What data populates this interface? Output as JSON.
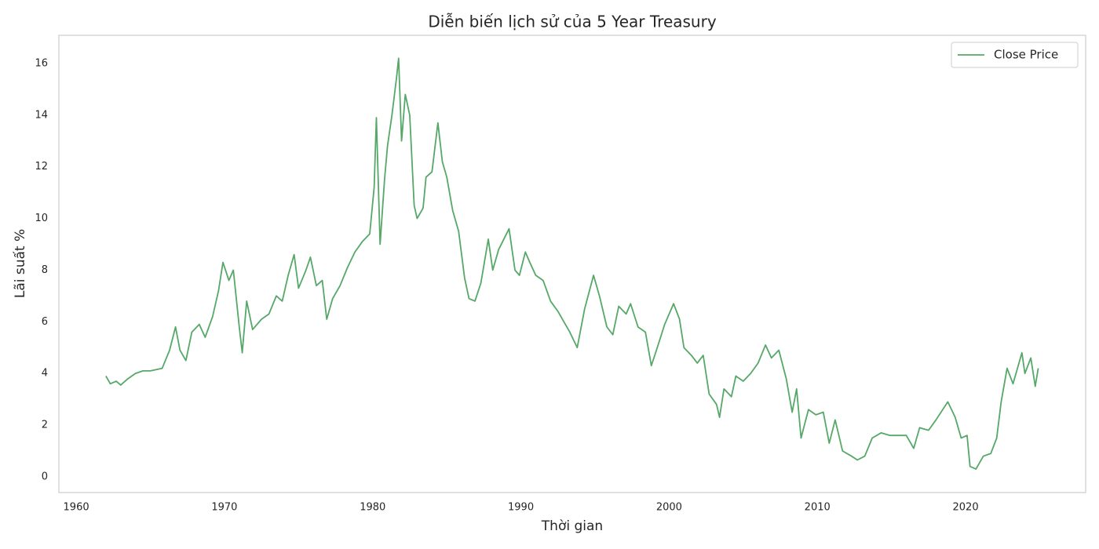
{
  "chart_data": {
    "type": "line",
    "title": "Diễn biến lịch sử của 5 Year Treasury",
    "xlabel": "Thời gian",
    "ylabel": "Lãi suất %",
    "x": [
      1962.0,
      1962.3,
      1962.7,
      1963.0,
      1963.5,
      1964.0,
      1964.5,
      1965.0,
      1965.8,
      1966.3,
      1966.7,
      1967.0,
      1967.4,
      1967.8,
      1968.3,
      1968.7,
      1969.2,
      1969.6,
      1969.9,
      1970.3,
      1970.6,
      1971.0,
      1971.2,
      1971.5,
      1971.9,
      1972.5,
      1973.0,
      1973.5,
      1973.9,
      1974.3,
      1974.7,
      1975.0,
      1975.5,
      1975.8,
      1976.2,
      1976.6,
      1976.9,
      1977.3,
      1977.8,
      1978.3,
      1978.8,
      1979.3,
      1979.8,
      1980.1,
      1980.25,
      1980.5,
      1980.8,
      1981.0,
      1981.3,
      1981.6,
      1981.75,
      1981.95,
      1982.2,
      1982.5,
      1982.8,
      1983.0,
      1983.4,
      1983.6,
      1984.0,
      1984.4,
      1984.7,
      1985.0,
      1985.4,
      1985.8,
      1986.2,
      1986.5,
      1986.9,
      1987.3,
      1987.8,
      1988.1,
      1988.5,
      1989.2,
      1989.6,
      1989.9,
      1990.3,
      1990.6,
      1991.0,
      1991.5,
      1992.0,
      1992.5,
      1992.9,
      1993.3,
      1993.8,
      1994.3,
      1994.9,
      1995.3,
      1995.8,
      1996.2,
      1996.6,
      1997.1,
      1997.4,
      1997.9,
      1998.4,
      1998.8,
      1999.2,
      1999.7,
      2000.3,
      2000.7,
      2001.0,
      2001.5,
      2001.9,
      2002.3,
      2002.7,
      2003.2,
      2003.4,
      2003.7,
      2004.2,
      2004.5,
      2005.0,
      2005.5,
      2006.0,
      2006.5,
      2006.9,
      2007.4,
      2007.9,
      2008.3,
      2008.6,
      2008.9,
      2009.4,
      2009.9,
      2010.4,
      2010.8,
      2011.2,
      2011.7,
      2012.3,
      2012.7,
      2013.2,
      2013.7,
      2014.3,
      2014.9,
      2015.5,
      2016.0,
      2016.5,
      2016.9,
      2017.5,
      2018.0,
      2018.8,
      2019.3,
      2019.7,
      2020.1,
      2020.3,
      2020.7,
      2021.2,
      2021.7,
      2022.1,
      2022.4,
      2022.8,
      2023.2,
      2023.5,
      2023.8,
      2024.0,
      2024.4,
      2024.7,
      2024.9
    ],
    "series": [
      {
        "name": "Close Price",
        "color": "#55a868",
        "values": [
          3.9,
          3.6,
          3.7,
          3.55,
          3.8,
          4.0,
          4.1,
          4.1,
          4.2,
          4.9,
          5.8,
          4.9,
          4.5,
          5.6,
          5.9,
          5.4,
          6.2,
          7.2,
          8.3,
          7.6,
          8.0,
          5.8,
          4.8,
          6.8,
          5.7,
          6.1,
          6.3,
          7.0,
          6.8,
          7.8,
          8.6,
          7.3,
          8.0,
          8.5,
          7.4,
          7.6,
          6.1,
          6.9,
          7.4,
          8.1,
          8.7,
          9.1,
          9.4,
          11.2,
          13.9,
          9.0,
          11.5,
          12.8,
          14.0,
          15.4,
          16.2,
          13.0,
          14.8,
          14.0,
          10.5,
          10.0,
          10.4,
          11.6,
          11.8,
          13.7,
          12.2,
          11.6,
          10.3,
          9.5,
          7.7,
          6.9,
          6.8,
          7.5,
          9.2,
          8.0,
          8.8,
          9.6,
          8.0,
          7.8,
          8.7,
          8.3,
          7.8,
          7.6,
          6.8,
          6.4,
          6.0,
          5.6,
          5.0,
          6.5,
          7.8,
          7.0,
          5.8,
          5.5,
          6.6,
          6.3,
          6.7,
          5.8,
          5.6,
          4.3,
          5.0,
          5.9,
          6.7,
          6.1,
          5.0,
          4.7,
          4.4,
          4.7,
          3.2,
          2.8,
          2.3,
          3.4,
          3.1,
          3.9,
          3.7,
          4.0,
          4.4,
          5.1,
          4.6,
          4.9,
          3.8,
          2.5,
          3.4,
          1.5,
          2.6,
          2.4,
          2.5,
          1.3,
          2.2,
          1.0,
          0.8,
          0.65,
          0.8,
          1.5,
          1.7,
          1.6,
          1.6,
          1.6,
          1.1,
          1.9,
          1.8,
          2.2,
          2.9,
          2.3,
          1.5,
          1.6,
          0.4,
          0.3,
          0.8,
          0.9,
          1.5,
          2.9,
          4.2,
          3.6,
          4.2,
          4.8,
          4.0,
          4.6,
          3.5,
          4.2
        ]
      }
    ],
    "xlim": [
      1958.83,
      2028.1
    ],
    "xticks": [
      1960,
      1970,
      1980,
      1990,
      2000,
      2010,
      2020
    ],
    "ylim": [
      -0.61,
      17.09
    ],
    "yticks": [
      0,
      2,
      4,
      6,
      8,
      10,
      12,
      14,
      16
    ],
    "grid": false,
    "legend": "upper right"
  }
}
